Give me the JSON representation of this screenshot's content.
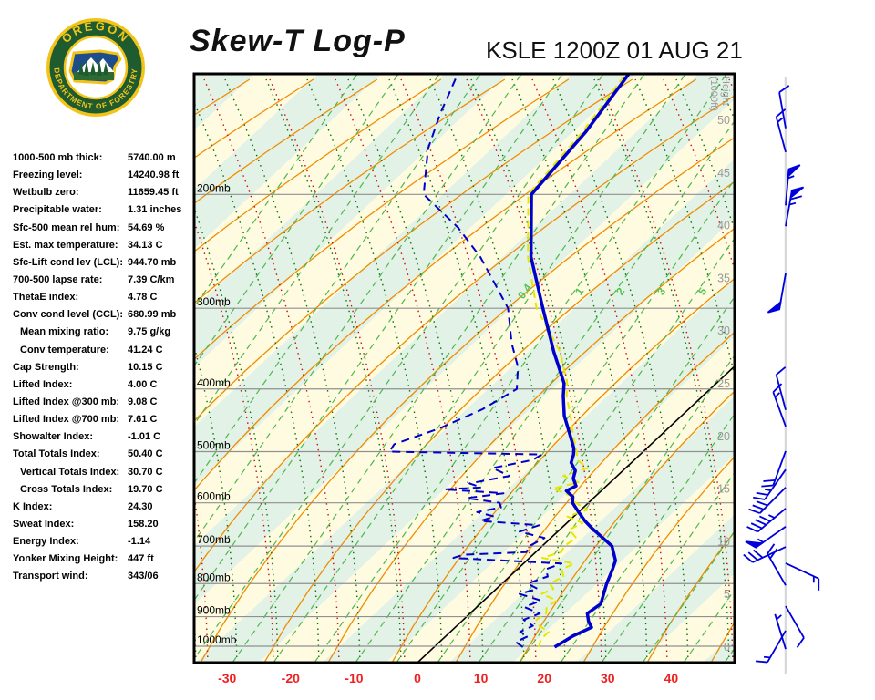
{
  "logo": {
    "top_text": "OREGON",
    "bottom_text": "DEPARTMENT OF FORESTRY"
  },
  "header": {
    "title": "Skew-T Log-P",
    "station": "KSLE 1200Z 01 AUG 21"
  },
  "indices": [
    {
      "label": "1000-500 mb thick:",
      "value": "5740.00 m",
      "indent": false
    },
    {
      "label": "Freezing level:",
      "value": "14240.98 ft",
      "indent": false
    },
    {
      "label": "Wetbulb zero:",
      "value": "11659.45 ft",
      "indent": false
    },
    {
      "label": "Precipitable water:",
      "value": "1.31 inches",
      "indent": false
    },
    {
      "label": "Sfc-500 mean rel hum:",
      "value": "54.69 %",
      "indent": false
    },
    {
      "label": "Est. max temperature:",
      "value": "34.13 C",
      "indent": false
    },
    {
      "label": "Sfc-Lift cond lev (LCL):",
      "value": "944.70 mb",
      "indent": false
    },
    {
      "label": "700-500 lapse rate:",
      "value": "7.39 C/km",
      "indent": false
    },
    {
      "label": "ThetaE index:",
      "value": "4.78 C",
      "indent": false
    },
    {
      "label": "Conv cond level (CCL):",
      "value": "680.99 mb",
      "indent": false
    },
    {
      "label": "Mean mixing ratio:",
      "value": "9.75 g/kg",
      "indent": true
    },
    {
      "label": "Conv temperature:",
      "value": "41.24 C",
      "indent": true
    },
    {
      "label": "Cap Strength:",
      "value": "10.15 C",
      "indent": false
    },
    {
      "label": "Lifted Index:",
      "value": "4.00 C",
      "indent": false
    },
    {
      "label": "Lifted Index @300 mb:",
      "value": "9.08 C",
      "indent": false
    },
    {
      "label": "Lifted Index @700 mb:",
      "value": "7.61 C",
      "indent": false
    },
    {
      "label": "Showalter Index:",
      "value": "-1.01 C",
      "indent": false
    },
    {
      "label": "Total Totals Index:",
      "value": "50.40 C",
      "indent": false
    },
    {
      "label": "Vertical Totals Index:",
      "value": "30.70 C",
      "indent": true
    },
    {
      "label": "Cross Totals Index:",
      "value": "19.70 C",
      "indent": true
    },
    {
      "label": "K Index:",
      "value": "24.30",
      "indent": false
    },
    {
      "label": "Sweat Index:",
      "value": "158.20",
      "indent": false
    },
    {
      "label": "Energy Index:",
      "value": "-1.14",
      "indent": false
    },
    {
      "label": "Yonker Mixing Height:",
      "value": "447 ft",
      "indent": false
    },
    {
      "label": "Transport wind:",
      "value": "343/06",
      "indent": false
    }
  ],
  "chart_data": {
    "type": "line",
    "variant": "skew-t-log-p sounding",
    "title": "Skew-T Log-P",
    "station": "KSLE 1200Z 01 AUG 21",
    "pressure_levels_mb": [
      200,
      300,
      400,
      500,
      600,
      700,
      800,
      900,
      1000
    ],
    "pressure_label_suffix": "mb",
    "temp_ticks_c": [
      -30,
      -20,
      -10,
      0,
      10,
      20,
      30,
      40
    ],
    "height_axis": {
      "label_line1": "Height",
      "label_line2": "(1000ft)",
      "ticks": [
        50,
        45,
        40,
        35,
        30,
        25,
        20,
        15,
        10,
        5,
        0
      ]
    },
    "mixing_ratio_labels": [
      "0.4",
      "1",
      "2",
      "3",
      "5"
    ],
    "series": [
      {
        "name": "temperature",
        "color": "#0000cc",
        "style": "solid",
        "points_p_t": [
          [
            1003,
            19
          ],
          [
            985,
            19.5
          ],
          [
            965,
            20
          ],
          [
            935,
            21.5
          ],
          [
            915,
            20
          ],
          [
            890,
            18.5
          ],
          [
            860,
            19
          ],
          [
            800,
            16.5
          ],
          [
            760,
            15
          ],
          [
            737,
            14
          ],
          [
            700,
            11
          ],
          [
            658,
            5
          ],
          [
            640,
            2.5
          ],
          [
            620,
            0
          ],
          [
            600,
            -2.5
          ],
          [
            587,
            -3.5
          ],
          [
            575,
            -5.5
          ],
          [
            565,
            -4.8
          ],
          [
            550,
            -6.5
          ],
          [
            535,
            -7.5
          ],
          [
            520,
            -9.5
          ],
          [
            505,
            -10.5
          ],
          [
            494,
            -11.5
          ],
          [
            470,
            -14.5
          ],
          [
            440,
            -18.5
          ],
          [
            410,
            -22
          ],
          [
            392,
            -24
          ],
          [
            350,
            -31
          ],
          [
            300,
            -40
          ],
          [
            250,
            -50.5
          ],
          [
            200,
            -61
          ],
          [
            160,
            -63
          ],
          [
            130,
            -66
          ]
        ]
      },
      {
        "name": "dewpoint",
        "color": "#0000cc",
        "style": "dashed",
        "points_p_t": [
          [
            1003,
            14
          ],
          [
            985,
            12
          ],
          [
            965,
            13
          ],
          [
            950,
            11
          ],
          [
            930,
            12
          ],
          [
            910,
            9.5
          ],
          [
            890,
            11
          ],
          [
            870,
            7.5
          ],
          [
            850,
            9
          ],
          [
            830,
            4.5
          ],
          [
            815,
            6.5
          ],
          [
            800,
            4
          ],
          [
            780,
            6
          ],
          [
            760,
            4.5
          ],
          [
            745,
            6
          ],
          [
            730,
            -12
          ],
          [
            722,
            -11
          ],
          [
            715,
            -1.5
          ],
          [
            700,
            -2
          ],
          [
            680,
            -1
          ],
          [
            665,
            -6
          ],
          [
            650,
            -4
          ],
          [
            640,
            -14
          ],
          [
            630,
            -12.5
          ],
          [
            620,
            -16
          ],
          [
            610,
            -13
          ],
          [
            600,
            -14
          ],
          [
            590,
            -20
          ],
          [
            580,
            -15
          ],
          [
            572,
            -25
          ],
          [
            568,
            -19.5
          ],
          [
            560,
            -22
          ],
          [
            545,
            -17
          ],
          [
            530,
            -21
          ],
          [
            515,
            -16
          ],
          [
            505,
            -15.5
          ],
          [
            500,
            -40
          ],
          [
            487,
            -40.5
          ],
          [
            460,
            -36
          ],
          [
            430,
            -32.5
          ],
          [
            400,
            -30.5
          ],
          [
            370,
            -34
          ],
          [
            340,
            -39
          ],
          [
            300,
            -45.5
          ],
          [
            270,
            -53
          ],
          [
            250,
            -58.5
          ],
          [
            225,
            -67
          ],
          [
            200,
            -78
          ],
          [
            170,
            -85
          ],
          [
            150,
            -89
          ],
          [
            130,
            -93
          ]
        ]
      },
      {
        "name": "wetbulb",
        "color": "#e6e600",
        "style": "dashed",
        "points_p_t": [
          [
            1003,
            16.5
          ],
          [
            975,
            15.5
          ],
          [
            950,
            15.5
          ],
          [
            930,
            13
          ],
          [
            910,
            11.5
          ],
          [
            890,
            12
          ],
          [
            870,
            11
          ],
          [
            850,
            11.5
          ],
          [
            830,
            8
          ],
          [
            815,
            9
          ],
          [
            800,
            7.5
          ],
          [
            780,
            8.5
          ],
          [
            760,
            7
          ],
          [
            745,
            8
          ],
          [
            730,
            2
          ],
          [
            715,
            4
          ],
          [
            700,
            3.5
          ],
          [
            680,
            4
          ],
          [
            660,
            1.5
          ],
          [
            645,
            2.5
          ],
          [
            630,
            -1
          ],
          [
            615,
            1
          ],
          [
            600,
            -2
          ],
          [
            585,
            -4
          ],
          [
            570,
            -8
          ],
          [
            558,
            -5
          ],
          [
            545,
            -8.5
          ],
          [
            530,
            -6
          ],
          [
            515,
            -9
          ],
          [
            500,
            -10.5
          ],
          [
            470,
            -14
          ],
          [
            440,
            -17.5
          ],
          [
            410,
            -21.5
          ],
          [
            392,
            -23.5
          ],
          [
            350,
            -30
          ],
          [
            300,
            -41
          ],
          [
            250,
            -51
          ],
          [
            200,
            -61.5
          ],
          [
            160,
            -63.5
          ],
          [
            130,
            -66.5
          ]
        ]
      }
    ],
    "wind_barbs": [
      {
        "p": 158,
        "dir": 350,
        "spd": 10
      },
      {
        "p": 172,
        "dir": 345,
        "spd": 15
      },
      {
        "p": 208,
        "dir": 5,
        "spd": 55
      },
      {
        "p": 224,
        "dir": 10,
        "spd": 65
      },
      {
        "p": 265,
        "dir": 190,
        "spd": 50
      },
      {
        "p": 431,
        "dir": 345,
        "spd": 10
      },
      {
        "p": 457,
        "dir": 340,
        "spd": 15
      },
      {
        "p": 499,
        "dir": 200,
        "spd": 20
      },
      {
        "p": 533,
        "dir": 215,
        "spd": 25
      },
      {
        "p": 568,
        "dir": 225,
        "spd": 30
      },
      {
        "p": 612,
        "dir": 230,
        "spd": 45
      },
      {
        "p": 653,
        "dir": 235,
        "spd": 55
      },
      {
        "p": 702,
        "dir": 245,
        "spd": 30
      },
      {
        "p": 744,
        "dir": 115,
        "spd": 15
      },
      {
        "p": 805,
        "dir": 330,
        "spd": 20
      },
      {
        "p": 867,
        "dir": 150,
        "spd": 10
      },
      {
        "p": 946,
        "dir": 210,
        "spd": 15
      },
      {
        "p": 1010,
        "dir": 343,
        "spd": 6
      }
    ],
    "colors": {
      "band_cream": "#fefbe1",
      "band_green": "#e3f2e6",
      "adiabat_orange": "#f08c00",
      "dotted_green": "#0a720a",
      "dotted_red": "#cc1111",
      "mixing_green": "#4db84d",
      "mixing_label_green": "#52c452",
      "isobar_gray": "#909090",
      "zero_isotherm": "#000000",
      "sounding_blue": "#0000cc",
      "wetbulb_yellow": "#e6e600",
      "temp_axis_red": "#ee2222",
      "height_gray": "#999999",
      "barb_blue": "#0000dd",
      "staff_gray": "#d8d8d8"
    }
  }
}
